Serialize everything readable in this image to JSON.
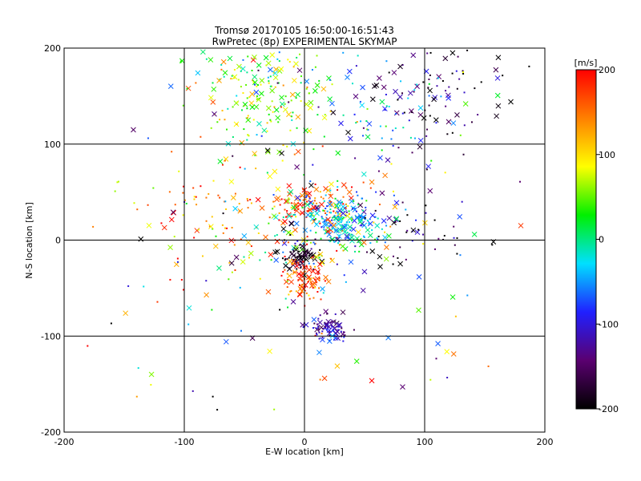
{
  "chart_data": {
    "type": "scatter",
    "title": "Tromsø 20170105 16:50:00-16:51:43",
    "subtitle": "RwPretec (8p) EXPERIMENTAL SKYMAP",
    "xlabel": "E-W location [km]",
    "ylabel": "N-S location [km]",
    "xlim": [
      -200,
      200
    ],
    "ylim": [
      -200,
      200
    ],
    "xticks": [
      "-200",
      "-100",
      "0",
      "100",
      "200"
    ],
    "yticks": [
      "-200",
      "-100",
      "0",
      "100",
      "200"
    ],
    "grid": true,
    "marker_types": [
      "cross",
      "dot"
    ],
    "colorbar": {
      "label": "[m/s]",
      "range": [
        -200,
        200
      ],
      "ticks": [
        "200",
        "100",
        "0",
        "-100",
        "-200"
      ],
      "colormap": [
        "#000000",
        "#5a0070",
        "#2020ff",
        "#00e0ff",
        "#00f000",
        "#ffff00",
        "#ff8000",
        "#ff0000"
      ]
    },
    "clusters": [
      {
        "x": 0,
        "y": 38,
        "sx": 10,
        "sy": 8,
        "n": 60,
        "v": 170,
        "vs": 30
      },
      {
        "x": 25,
        "y": 38,
        "sx": 13,
        "sy": 12,
        "n": 40,
        "v": 160,
        "vs": 40
      },
      {
        "x": 30,
        "y": 20,
        "sx": 18,
        "sy": 14,
        "n": 160,
        "v": -40,
        "vs": 40
      },
      {
        "x": 10,
        "y": 10,
        "sx": 35,
        "sy": 25,
        "n": 140,
        "v": 20,
        "vs": 110
      },
      {
        "x": -5,
        "y": -18,
        "sx": 9,
        "sy": 7,
        "n": 70,
        "v": -190,
        "vs": 20
      },
      {
        "x": 0,
        "y": -40,
        "sx": 10,
        "sy": 12,
        "n": 90,
        "v": 160,
        "vs": 40
      },
      {
        "x": 22,
        "y": -92,
        "sx": 9,
        "sy": 7,
        "n": 80,
        "v": -120,
        "vs": 30
      },
      {
        "x": -30,
        "y": 140,
        "sx": 30,
        "sy": 30,
        "n": 140,
        "v": 70,
        "vs": 50
      },
      {
        "x": -50,
        "y": 175,
        "sx": 25,
        "sy": 15,
        "n": 60,
        "v": 0,
        "vs": 60
      },
      {
        "x": 100,
        "y": 150,
        "sx": 35,
        "sy": 35,
        "n": 90,
        "v": -160,
        "vs": 40
      },
      {
        "x": 50,
        "y": 140,
        "sx": 35,
        "sy": 25,
        "n": 60,
        "v": -50,
        "vs": 40
      },
      {
        "x": -70,
        "y": 30,
        "sx": 35,
        "sy": 30,
        "n": 80,
        "v": 150,
        "vs": 60
      },
      {
        "x": 80,
        "y": 10,
        "sx": 30,
        "sy": 20,
        "n": 50,
        "v": -150,
        "vs": 60
      },
      {
        "x": 0,
        "y": 0,
        "sx": 100,
        "sy": 100,
        "n": 160,
        "v": 0,
        "vs": 140
      }
    ]
  }
}
